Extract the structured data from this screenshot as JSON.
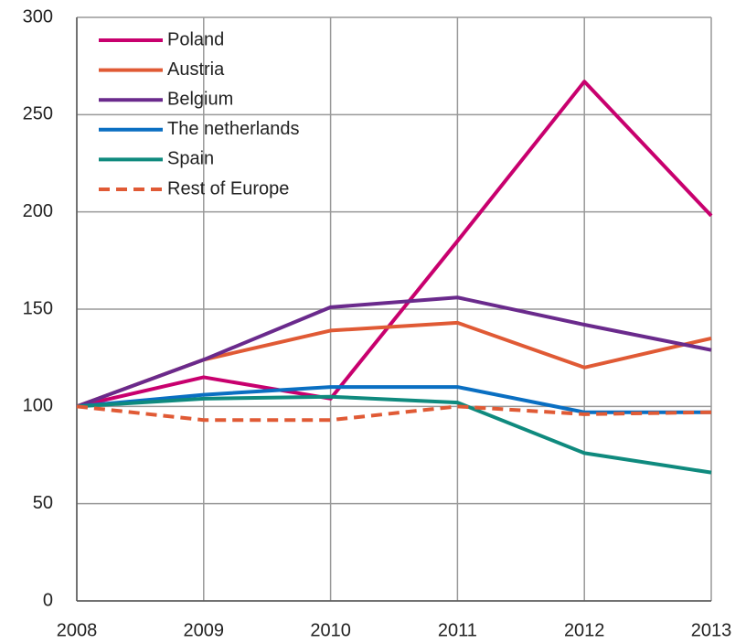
{
  "chart_data": {
    "type": "line",
    "x": [
      2008,
      2009,
      2010,
      2011,
      2012,
      2013
    ],
    "xlim": [
      2008,
      2013
    ],
    "xticks": [
      2008,
      2009,
      2010,
      2011,
      2012,
      2013
    ],
    "ylim": [
      0,
      300
    ],
    "yticks": [
      0,
      50,
      100,
      150,
      200,
      250,
      300
    ],
    "grid": true,
    "legend": "upper left",
    "series": [
      {
        "name": "Poland",
        "color": "#c8006e",
        "values": [
          100,
          115,
          104,
          185,
          267,
          198
        ]
      },
      {
        "name": "Austria",
        "color": "#e05a35",
        "values": [
          100,
          124,
          139,
          143,
          120,
          135
        ]
      },
      {
        "name": "Belgium",
        "color": "#6a2a8c",
        "values": [
          100,
          124,
          151,
          156,
          142,
          129
        ]
      },
      {
        "name": "The netherlands",
        "color": "#0a6fc2",
        "values": [
          100,
          106,
          110,
          110,
          97,
          97
        ]
      },
      {
        "name": "Spain",
        "color": "#0f8a7e",
        "values": [
          100,
          104,
          105,
          102,
          76,
          66
        ]
      },
      {
        "name": "Rest of Europe",
        "color": "#e05a35",
        "dashed": true,
        "values": [
          100,
          93,
          93,
          100,
          96,
          97
        ]
      }
    ]
  }
}
